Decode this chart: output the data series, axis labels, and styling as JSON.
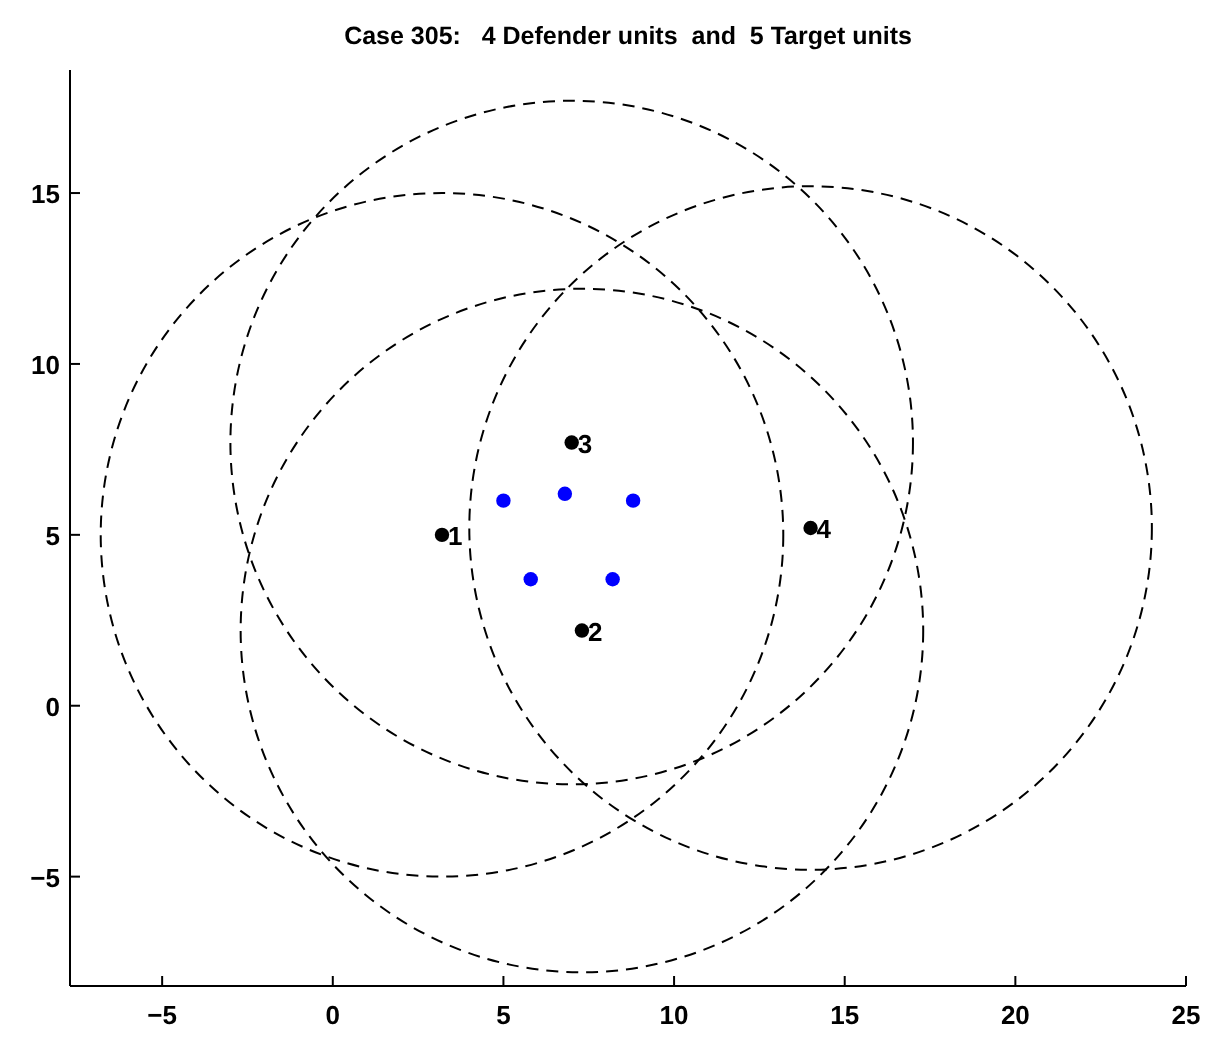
{
  "chart_data": {
    "type": "scatter",
    "title": "Case 305:   4 Defender units  and  5 Target units",
    "xlim": [
      -7.7,
      25
    ],
    "ylim": [
      -8.2,
      18.6
    ],
    "xticks": [
      -5,
      0,
      5,
      10,
      15,
      20,
      25
    ],
    "yticks": [
      -5,
      0,
      5,
      10,
      15
    ],
    "grid": false,
    "marker": "circle",
    "series": [
      {
        "color": "#000000",
        "x": [
          3.2,
          7.3,
          7.0,
          14.0
        ],
        "values": [
          5.0,
          2.2,
          7.7,
          5.2
        ]
      },
      {
        "color": "#0000ff",
        "x": [
          5.0,
          6.8,
          8.8,
          5.8,
          8.2
        ],
        "values": [
          6.0,
          6.2,
          6.0,
          3.7,
          3.7
        ]
      }
    ],
    "annotations": [
      {
        "text": "1",
        "x": 3.2,
        "y": 5.0
      },
      {
        "text": "2",
        "x": 7.3,
        "y": 2.2
      },
      {
        "text": "3",
        "x": 7.0,
        "y": 7.7
      },
      {
        "text": "4",
        "x": 14.0,
        "y": 5.2
      }
    ]
  }
}
